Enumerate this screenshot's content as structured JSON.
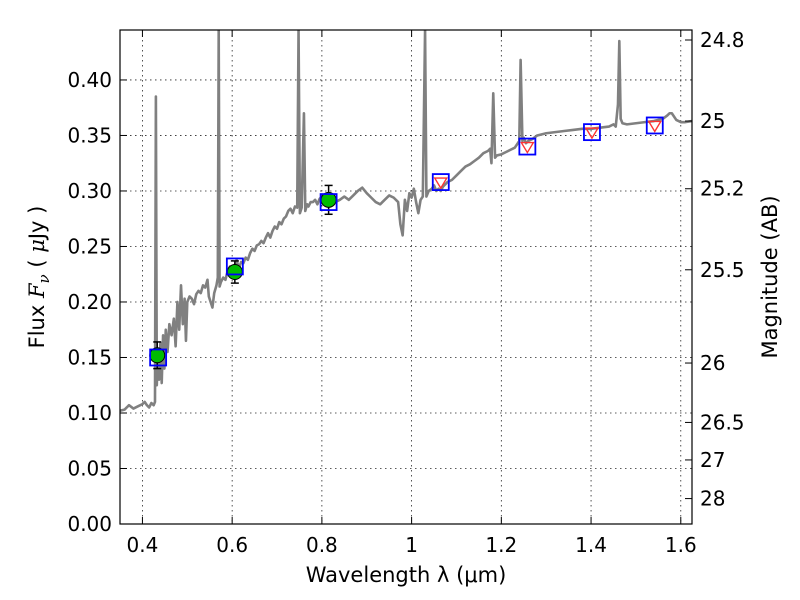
{
  "chart_data": {
    "type": "scatter",
    "xlabel": "Wavelength  λ (μm)",
    "ylabel": "Flux  F_ν  ( μJy )",
    "ylabel_right": "Magnitude (AB)",
    "xlim": [
      0.35,
      1.625
    ],
    "ylim": [
      0.0,
      0.445
    ],
    "grid": true,
    "x_ticks": [
      0.4,
      0.6,
      0.8,
      1.0,
      1.2,
      1.4,
      1.6
    ],
    "x_tick_labels": [
      "0.4",
      "0.6",
      "0.8",
      "1",
      "1.2",
      "1.4",
      "1.6"
    ],
    "y_ticks": [
      0.0,
      0.05,
      0.1,
      0.15,
      0.2,
      0.25,
      0.3,
      0.35,
      0.4
    ],
    "y_tick_labels": [
      "0.00",
      "0.05",
      "0.10",
      "0.15",
      "0.20",
      "0.25",
      "0.30",
      "0.35",
      "0.40"
    ],
    "right_ticks": [
      {
        "label": "24.8",
        "flux": 0.436
      },
      {
        "label": "25",
        "flux": 0.363
      },
      {
        "label": "25.2",
        "flux": 0.302
      },
      {
        "label": "25.5",
        "flux": 0.229
      },
      {
        "label": "26",
        "flux": 0.145
      },
      {
        "label": "26.5",
        "flux": 0.0915
      },
      {
        "label": "27",
        "flux": 0.0577
      },
      {
        "label": "28",
        "flux": 0.0229
      }
    ],
    "series": [
      {
        "role": "model-spectrum",
        "color": "#808080",
        "points": [
          [
            0.35,
            0.102
          ],
          [
            0.36,
            0.103
          ],
          [
            0.37,
            0.107
          ],
          [
            0.38,
            0.104
          ],
          [
            0.39,
            0.106
          ],
          [
            0.4,
            0.108
          ],
          [
            0.405,
            0.11
          ],
          [
            0.41,
            0.107
          ],
          [
            0.415,
            0.105
          ],
          [
            0.42,
            0.109
          ],
          [
            0.425,
            0.107
          ],
          [
            0.428,
            0.11
          ],
          [
            0.43,
            0.385
          ],
          [
            0.432,
            0.125
          ],
          [
            0.434,
            0.15
          ],
          [
            0.437,
            0.13
          ],
          [
            0.44,
            0.163
          ],
          [
            0.443,
            0.127
          ],
          [
            0.446,
            0.17
          ],
          [
            0.449,
            0.14
          ],
          [
            0.452,
            0.175
          ],
          [
            0.456,
            0.155
          ],
          [
            0.46,
            0.18
          ],
          [
            0.465,
            0.17
          ],
          [
            0.47,
            0.185
          ],
          [
            0.474,
            0.16
          ],
          [
            0.478,
            0.2
          ],
          [
            0.482,
            0.175
          ],
          [
            0.486,
            0.215
          ],
          [
            0.49,
            0.18
          ],
          [
            0.494,
            0.203
          ],
          [
            0.497,
            0.165
          ],
          [
            0.5,
            0.2
          ],
          [
            0.505,
            0.205
          ],
          [
            0.51,
            0.203
          ],
          [
            0.515,
            0.198
          ],
          [
            0.52,
            0.207
          ],
          [
            0.525,
            0.21
          ],
          [
            0.53,
            0.208
          ],
          [
            0.535,
            0.215
          ],
          [
            0.54,
            0.213
          ],
          [
            0.545,
            0.22
          ],
          [
            0.548,
            0.205
          ],
          [
            0.552,
            0.2
          ],
          [
            0.556,
            0.195
          ],
          [
            0.56,
            0.208
          ],
          [
            0.565,
            0.215
          ],
          [
            0.568,
            0.222
          ],
          [
            0.57,
            0.445
          ],
          [
            0.572,
            0.214
          ],
          [
            0.575,
            0.218
          ],
          [
            0.58,
            0.222
          ],
          [
            0.585,
            0.22
          ],
          [
            0.59,
            0.228
          ],
          [
            0.595,
            0.232
          ],
          [
            0.6,
            0.225
          ],
          [
            0.605,
            0.232
          ],
          [
            0.61,
            0.238
          ],
          [
            0.615,
            0.23
          ],
          [
            0.62,
            0.236
          ],
          [
            0.625,
            0.235
          ],
          [
            0.63,
            0.24
          ],
          [
            0.635,
            0.238
          ],
          [
            0.64,
            0.244
          ],
          [
            0.645,
            0.248
          ],
          [
            0.65,
            0.246
          ],
          [
            0.655,
            0.251
          ],
          [
            0.66,
            0.252
          ],
          [
            0.665,
            0.255
          ],
          [
            0.67,
            0.253
          ],
          [
            0.675,
            0.258
          ],
          [
            0.68,
            0.262
          ],
          [
            0.685,
            0.258
          ],
          [
            0.69,
            0.264
          ],
          [
            0.695,
            0.268
          ],
          [
            0.7,
            0.266
          ],
          [
            0.705,
            0.272
          ],
          [
            0.71,
            0.27
          ],
          [
            0.715,
            0.275
          ],
          [
            0.72,
            0.277
          ],
          [
            0.725,
            0.282
          ],
          [
            0.73,
            0.284
          ],
          [
            0.735,
            0.28
          ],
          [
            0.74,
            0.286
          ],
          [
            0.745,
            0.285
          ],
          [
            0.748,
            0.445
          ],
          [
            0.751,
            0.28
          ],
          [
            0.755,
            0.285
          ],
          [
            0.76,
            0.37
          ],
          [
            0.763,
            0.282
          ],
          [
            0.767,
            0.288
          ],
          [
            0.77,
            0.286
          ],
          [
            0.775,
            0.29
          ],
          [
            0.78,
            0.29
          ],
          [
            0.785,
            0.292
          ],
          [
            0.79,
            0.288
          ],
          [
            0.795,
            0.293
          ],
          [
            0.8,
            0.295
          ],
          [
            0.81,
            0.293
          ],
          [
            0.82,
            0.294
          ],
          [
            0.83,
            0.29
          ],
          [
            0.84,
            0.292
          ],
          [
            0.85,
            0.295
          ],
          [
            0.86,
            0.292
          ],
          [
            0.87,
            0.296
          ],
          [
            0.88,
            0.3
          ],
          [
            0.89,
            0.303
          ],
          [
            0.9,
            0.298
          ],
          [
            0.91,
            0.294
          ],
          [
            0.92,
            0.29
          ],
          [
            0.93,
            0.288
          ],
          [
            0.94,
            0.292
          ],
          [
            0.95,
            0.296
          ],
          [
            0.96,
            0.294
          ],
          [
            0.97,
            0.29
          ],
          [
            0.975,
            0.27
          ],
          [
            0.98,
            0.26
          ],
          [
            0.985,
            0.292
          ],
          [
            0.99,
            0.282
          ],
          [
            0.995,
            0.298
          ],
          [
            1.0,
            0.294
          ],
          [
            1.005,
            0.302
          ],
          [
            1.01,
            0.29
          ],
          [
            1.015,
            0.28
          ],
          [
            1.02,
            0.292
          ],
          [
            1.025,
            0.295
          ],
          [
            1.03,
            0.445
          ],
          [
            1.033,
            0.295
          ],
          [
            1.038,
            0.3
          ],
          [
            1.045,
            0.302
          ],
          [
            1.05,
            0.305
          ],
          [
            1.055,
            0.3
          ],
          [
            1.06,
            0.302
          ],
          [
            1.065,
            0.3
          ],
          [
            1.07,
            0.304
          ],
          [
            1.08,
            0.308
          ],
          [
            1.09,
            0.31
          ],
          [
            1.1,
            0.314
          ],
          [
            1.11,
            0.318
          ],
          [
            1.12,
            0.322
          ],
          [
            1.13,
            0.324
          ],
          [
            1.14,
            0.327
          ],
          [
            1.15,
            0.33
          ],
          [
            1.16,
            0.334
          ],
          [
            1.17,
            0.336
          ],
          [
            1.175,
            0.338
          ],
          [
            1.178,
            0.325
          ],
          [
            1.182,
            0.388
          ],
          [
            1.186,
            0.33
          ],
          [
            1.19,
            0.332
          ],
          [
            1.2,
            0.333
          ],
          [
            1.21,
            0.335
          ],
          [
            1.22,
            0.337
          ],
          [
            1.23,
            0.339
          ],
          [
            1.235,
            0.342
          ],
          [
            1.24,
            0.345
          ],
          [
            1.243,
            0.418
          ],
          [
            1.247,
            0.345
          ],
          [
            1.25,
            0.348
          ],
          [
            1.255,
            0.343
          ],
          [
            1.26,
            0.345
          ],
          [
            1.27,
            0.347
          ],
          [
            1.28,
            0.35
          ],
          [
            1.3,
            0.352
          ],
          [
            1.32,
            0.353
          ],
          [
            1.34,
            0.354
          ],
          [
            1.36,
            0.355
          ],
          [
            1.38,
            0.356
          ],
          [
            1.4,
            0.356
          ],
          [
            1.42,
            0.357
          ],
          [
            1.44,
            0.358
          ],
          [
            1.45,
            0.36
          ],
          [
            1.455,
            0.358
          ],
          [
            1.46,
            0.378
          ],
          [
            1.463,
            0.435
          ],
          [
            1.466,
            0.365
          ],
          [
            1.47,
            0.361
          ],
          [
            1.48,
            0.36
          ],
          [
            1.5,
            0.361
          ],
          [
            1.52,
            0.362
          ],
          [
            1.54,
            0.363
          ],
          [
            1.56,
            0.365
          ],
          [
            1.57,
            0.368
          ],
          [
            1.575,
            0.37
          ],
          [
            1.58,
            0.37
          ],
          [
            1.59,
            0.364
          ],
          [
            1.6,
            0.362
          ],
          [
            1.61,
            0.362
          ],
          [
            1.625,
            0.363
          ]
        ]
      },
      {
        "role": "observed-photometry",
        "color": "#00bb00",
        "marker": "circle-with-errorbar",
        "points": [
          {
            "x": 0.433,
            "y": 0.152,
            "err": 0.012
          },
          {
            "x": 0.606,
            "y": 0.227,
            "err": 0.01
          },
          {
            "x": 0.815,
            "y": 0.292,
            "err": 0.013
          }
        ]
      },
      {
        "role": "model-photometry-squares",
        "color": "#0000ff",
        "marker": "open-square",
        "points": [
          {
            "x": 0.435,
            "y": 0.15
          },
          {
            "x": 0.606,
            "y": 0.232
          },
          {
            "x": 0.815,
            "y": 0.29
          },
          {
            "x": 1.065,
            "y": 0.308
          },
          {
            "x": 1.258,
            "y": 0.34
          },
          {
            "x": 1.402,
            "y": 0.353
          },
          {
            "x": 1.542,
            "y": 0.359
          }
        ]
      },
      {
        "role": "upper-limit-triangles",
        "color": "#ff3333",
        "marker": "open-triangle-down",
        "points": [
          {
            "x": 1.065,
            "y": 0.308
          },
          {
            "x": 1.258,
            "y": 0.34
          },
          {
            "x": 1.402,
            "y": 0.353
          },
          {
            "x": 1.542,
            "y": 0.359
          }
        ]
      }
    ]
  }
}
